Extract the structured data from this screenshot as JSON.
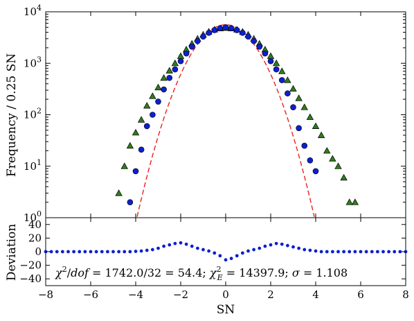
{
  "chart_data": [
    {
      "type": "scatter",
      "title": "",
      "xlabel": "",
      "ylabel": "Frequency / 0.25 SN",
      "yscale": "log",
      "xlim": [
        -8,
        8
      ],
      "ylim": [
        1,
        10000
      ],
      "x_ticks": [
        "−8",
        "−6",
        "−4",
        "−2",
        "0",
        "2",
        "4",
        "6",
        "8"
      ],
      "y_ticks": [
        {
          "base": "10",
          "exp": "0"
        },
        {
          "base": "10",
          "exp": "1"
        },
        {
          "base": "10",
          "exp": "2"
        },
        {
          "base": "10",
          "exp": "3"
        },
        {
          "base": "10",
          "exp": "4"
        }
      ],
      "grid": false,
      "series": [
        {
          "marker": "triangle",
          "color": "#2e7d1a",
          "x": [
            -4.75,
            -4.5,
            -4.25,
            -4.0,
            -3.75,
            -3.5,
            -3.25,
            -3.0,
            -2.75,
            -2.5,
            -2.25,
            -2.0,
            -1.75,
            -1.5,
            -1.25,
            -1.0,
            -0.75,
            -0.5,
            -0.25,
            0.0,
            0.25,
            0.5,
            0.75,
            1.0,
            1.25,
            1.5,
            1.75,
            2.0,
            2.25,
            2.5,
            2.75,
            3.0,
            3.25,
            3.5,
            3.75,
            4.0,
            4.25,
            4.5,
            4.75,
            5.0,
            5.25,
            5.5,
            5.75
          ],
          "y": [
            3,
            10,
            25,
            45,
            80,
            150,
            230,
            340,
            520,
            720,
            1000,
            1380,
            1850,
            2400,
            3000,
            3600,
            4100,
            4500,
            4750,
            4850,
            4750,
            4500,
            4100,
            3600,
            3000,
            2400,
            1850,
            1380,
            1000,
            700,
            470,
            320,
            210,
            140,
            90,
            60,
            40,
            20,
            14,
            10,
            6,
            2,
            2
          ]
        },
        {
          "marker": "circle",
          "color": "#0d1fd0",
          "x": [
            -4.25,
            -4.0,
            -3.75,
            -3.5,
            -3.25,
            -3.0,
            -2.75,
            -2.5,
            -2.25,
            -2.0,
            -1.75,
            -1.5,
            -1.25,
            -1.0,
            -0.75,
            -0.5,
            -0.25,
            0.0,
            0.25,
            0.5,
            0.75,
            1.0,
            1.25,
            1.5,
            1.75,
            2.0,
            2.25,
            2.5,
            2.75,
            3.0,
            3.25,
            3.5,
            3.75,
            4.0
          ],
          "y": [
            2,
            8,
            21,
            60,
            100,
            180,
            310,
            520,
            760,
            1100,
            1550,
            2100,
            2700,
            3300,
            3900,
            4400,
            4800,
            5000,
            4800,
            4400,
            3900,
            3300,
            2700,
            2100,
            1550,
            1100,
            760,
            470,
            260,
            140,
            55,
            25,
            13,
            8
          ]
        },
        {
          "marker": "dashed-line",
          "color": "#e8201e",
          "curve": "gaussian",
          "amplitude": 5600,
          "sigma": 0.95,
          "x_range": [
            -4.2,
            4.2
          ]
        }
      ]
    },
    {
      "type": "scatter",
      "title": "",
      "xlabel": "SN",
      "ylabel": "Deviation",
      "xlim": [
        -8,
        8
      ],
      "ylim": [
        -50,
        50
      ],
      "x_ticks": [
        "−8",
        "−6",
        "−4",
        "−2",
        "0",
        "2",
        "4",
        "6",
        "8"
      ],
      "y_ticks": [
        "−40",
        "−20",
        "0",
        "20",
        "40"
      ],
      "y_tick_values": [
        -40,
        -20,
        0,
        20,
        40
      ],
      "grid": false,
      "annotation": "χ²/dof = 1742.0/32 = 54.4; χ²_E = 14397.9; σ = 1.108",
      "series": [
        {
          "marker": "circle",
          "color": "#0d1fd0",
          "x": [
            -8.0,
            -7.75,
            -7.5,
            -7.25,
            -7.0,
            -6.75,
            -6.5,
            -6.25,
            -6.0,
            -5.75,
            -5.5,
            -5.25,
            -5.0,
            -4.75,
            -4.5,
            -4.25,
            -4.0,
            -3.75,
            -3.5,
            -3.25,
            -3.0,
            -2.75,
            -2.5,
            -2.25,
            -2.0,
            -1.75,
            -1.5,
            -1.25,
            -1.0,
            -0.75,
            -0.5,
            -0.25,
            0.0,
            0.25,
            0.5,
            0.75,
            1.0,
            1.25,
            1.5,
            1.75,
            2.0,
            2.25,
            2.5,
            2.75,
            3.0,
            3.25,
            3.5,
            3.75,
            4.0,
            4.25,
            4.5,
            4.75,
            5.0,
            5.25,
            5.5,
            5.75,
            6.0,
            6.25,
            6.5,
            6.75,
            7.0,
            7.25,
            7.5,
            7.75,
            8.0
          ],
          "y": [
            0,
            0,
            0,
            0,
            0,
            0,
            0,
            0,
            0,
            0,
            0,
            0,
            0,
            0,
            0,
            0,
            0.5,
            1,
            2,
            3,
            5,
            8,
            10,
            12,
            13,
            11,
            8,
            5,
            3,
            1,
            -2,
            -6,
            -12,
            -10,
            -6,
            -2,
            1,
            3,
            5,
            8,
            10,
            12,
            11,
            9,
            7,
            5,
            3,
            2,
            1,
            0,
            0,
            0,
            0,
            0,
            0,
            0,
            0,
            0,
            0,
            0,
            0,
            0,
            0,
            0,
            0
          ]
        }
      ]
    }
  ]
}
